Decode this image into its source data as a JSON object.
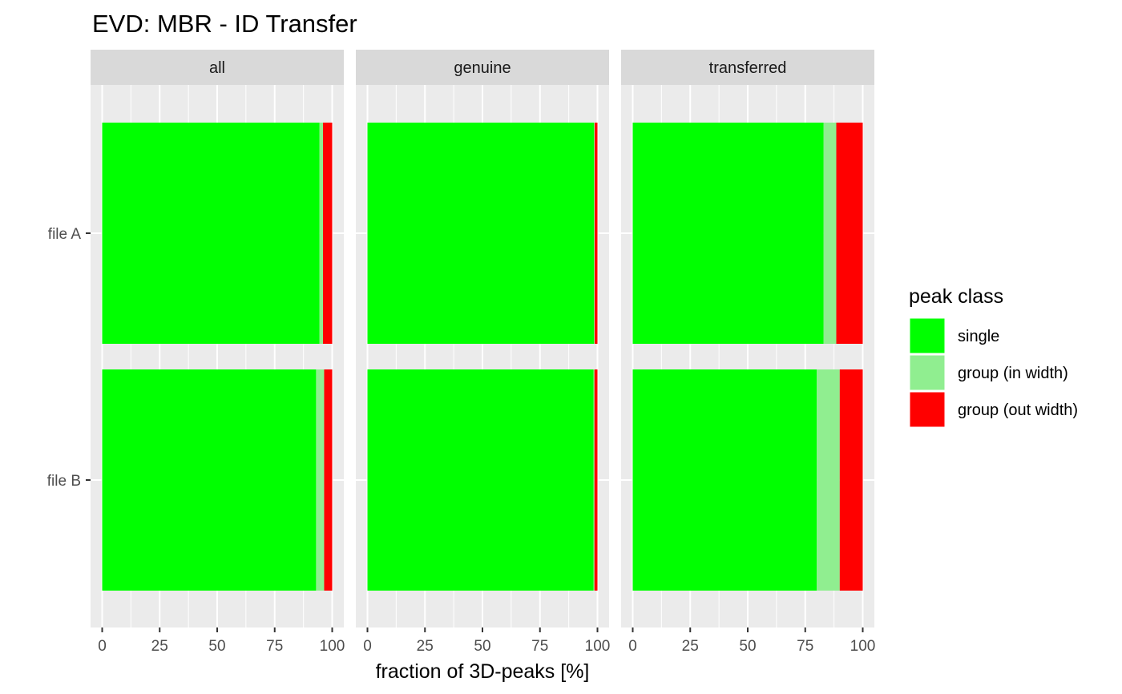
{
  "chart_data": {
    "type": "bar",
    "orientation": "horizontal",
    "stacked": true,
    "title": "EVD: MBR - ID Transfer",
    "xlabel": "fraction of 3D-peaks [%]",
    "ylabel": "",
    "xlim": [
      0,
      100
    ],
    "xticks": [
      "0",
      "25",
      "50",
      "75",
      "100"
    ],
    "categories": [
      "file A",
      "file B"
    ],
    "facets": [
      {
        "name": "all",
        "series": [
          {
            "name": "single",
            "values": [
              94.5,
              93.0
            ]
          },
          {
            "name": "group (in width)",
            "values": [
              1.5,
              3.5
            ]
          },
          {
            "name": "group (out width)",
            "values": [
              4.0,
              3.5
            ]
          }
        ]
      },
      {
        "name": "genuine",
        "series": [
          {
            "name": "single",
            "values": [
              98.5,
              98.3
            ]
          },
          {
            "name": "group (in width)",
            "values": [
              0.3,
              0.4
            ]
          },
          {
            "name": "group (out width)",
            "values": [
              1.2,
              1.3
            ]
          }
        ]
      },
      {
        "name": "transferred",
        "series": [
          {
            "name": "single",
            "values": [
              83.0,
              80.0
            ]
          },
          {
            "name": "group (in width)",
            "values": [
              5.5,
              10.0
            ]
          },
          {
            "name": "group (out width)",
            "values": [
              11.5,
              10.0
            ]
          }
        ]
      }
    ],
    "legend": {
      "title": "peak class",
      "position": "right",
      "entries": [
        {
          "name": "single",
          "color": "#00ff00"
        },
        {
          "name": "group (in width)",
          "color": "#90ee90"
        },
        {
          "name": "group (out width)",
          "color": "#ff0000"
        }
      ]
    },
    "panel_background": "#ebebeb",
    "strip_background": "#d9d9d9",
    "grid": true
  }
}
